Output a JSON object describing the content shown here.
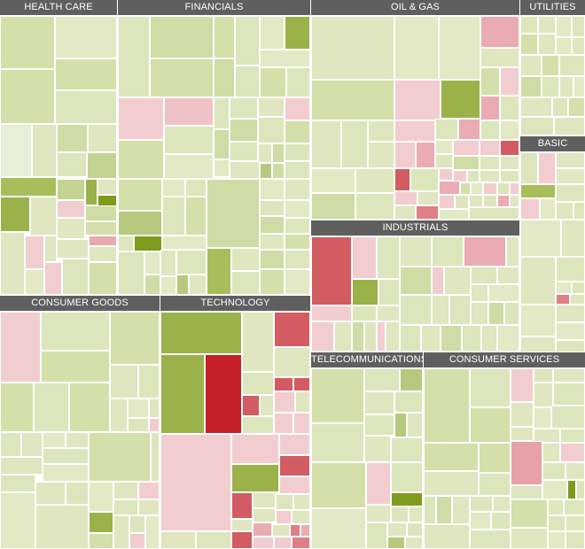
{
  "heatmap": {
    "palette": {
      "neutral": "#d6e2b2",
      "up": "#9bb24a",
      "down": "#d25c62",
      "strong_down": "#c62027",
      "light_down": "#f2cdd0",
      "header_bg": "#5f5f5f",
      "header_text": "#ffffff"
    },
    "sectors": [
      {
        "key": "health_care",
        "label": "HEALTH CARE"
      },
      {
        "key": "financials",
        "label": "FINANCIALS"
      },
      {
        "key": "oil_gas",
        "label": "OIL & GAS"
      },
      {
        "key": "utilities",
        "label": "UTILITIES"
      },
      {
        "key": "basic",
        "label": "BASIC"
      },
      {
        "key": "industrials",
        "label": "INDUSTRIALS"
      },
      {
        "key": "consumer_goods",
        "label": "CONSUMER GOODS"
      },
      {
        "key": "technology",
        "label": "TECHNOLOGY"
      },
      {
        "key": "telecommunications",
        "label": "TELECOMMUNICATIONS"
      },
      {
        "key": "consumer_services",
        "label": "CONSUMER SERVICES"
      }
    ]
  }
}
